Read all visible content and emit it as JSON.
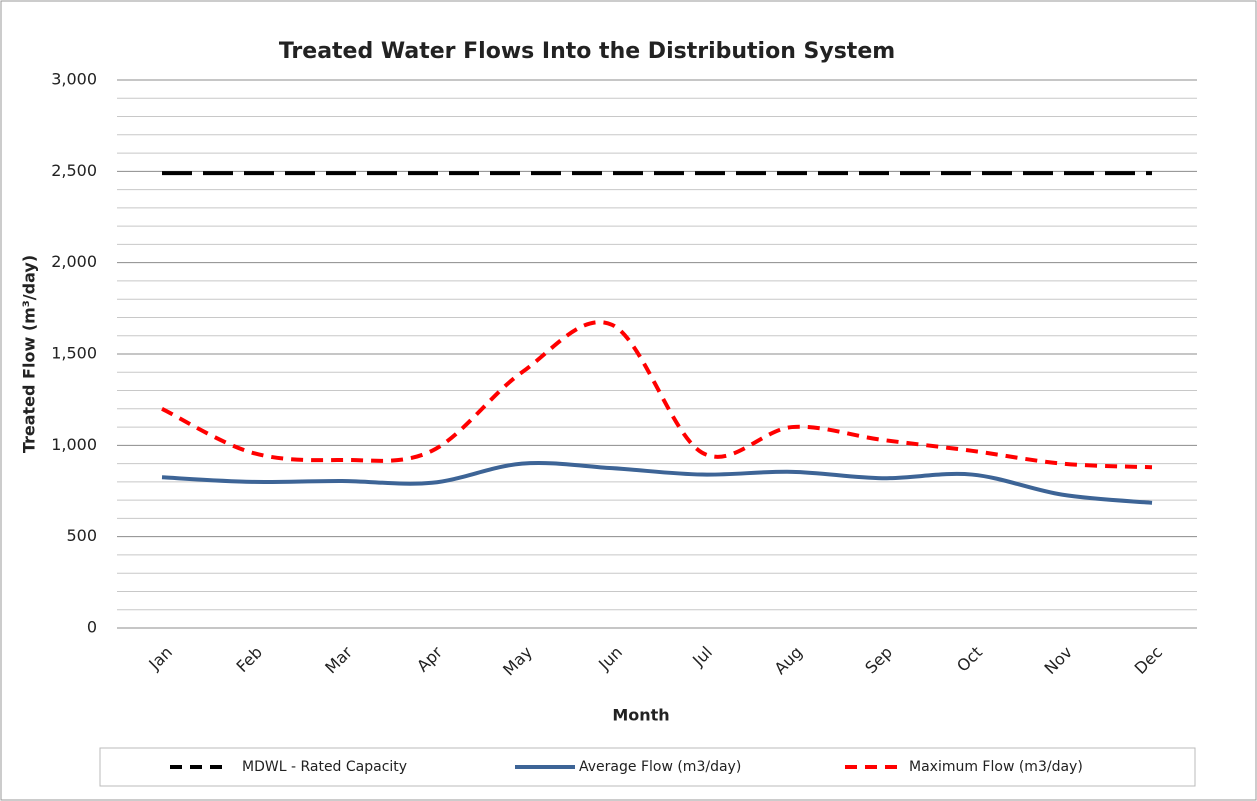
{
  "chart_data": {
    "type": "line",
    "title": "Treated Water Flows Into the Distribution System",
    "x_label": "Month",
    "y_label": "Treated Flow (m³/day)",
    "categories": [
      "Jan",
      "Feb",
      "Mar",
      "Apr",
      "May",
      "Jun",
      "Jul",
      "Aug",
      "Sep",
      "Oct",
      "Nov",
      "Dec"
    ],
    "series": [
      {
        "name": "MDWL - Rated Capacity",
        "color": "#000000",
        "dashed": true,
        "smooth": false,
        "values": [
          2490,
          2490,
          2490,
          2490,
          2490,
          2490,
          2490,
          2490,
          2490,
          2490,
          2490,
          2490
        ]
      },
      {
        "name": "Average Flow (m3/day)",
        "color": "#3d6496",
        "dashed": false,
        "smooth": true,
        "values": [
          825,
          800,
          805,
          795,
          900,
          875,
          840,
          855,
          820,
          840,
          730,
          685
        ]
      },
      {
        "name": "Maximum Flow (m3/day)",
        "color": "#ff0000",
        "dashed": true,
        "smooth": true,
        "values": [
          1200,
          960,
          920,
          970,
          1400,
          1660,
          960,
          1100,
          1030,
          970,
          900,
          880
        ]
      }
    ],
    "ylim": [
      0,
      3000
    ],
    "yticks": [
      0,
      500,
      {
        "value": 1000,
        "label": "1,000"
      },
      {
        "value": 1500,
        "label": "1,500"
      },
      {
        "value": 2000,
        "label": "2,000"
      },
      {
        "value": 2500,
        "label": "2,500"
      },
      {
        "value": 3000,
        "label": "3,000"
      }
    ],
    "minor_yticks": [
      100,
      200,
      300,
      400,
      600,
      700,
      800,
      900,
      1100,
      1200,
      1300,
      1400,
      1600,
      1700,
      1800,
      1900,
      2100,
      2200,
      2300,
      2400,
      2600,
      2700,
      2800,
      2900
    ],
    "grid": true,
    "legend": "bottom"
  }
}
